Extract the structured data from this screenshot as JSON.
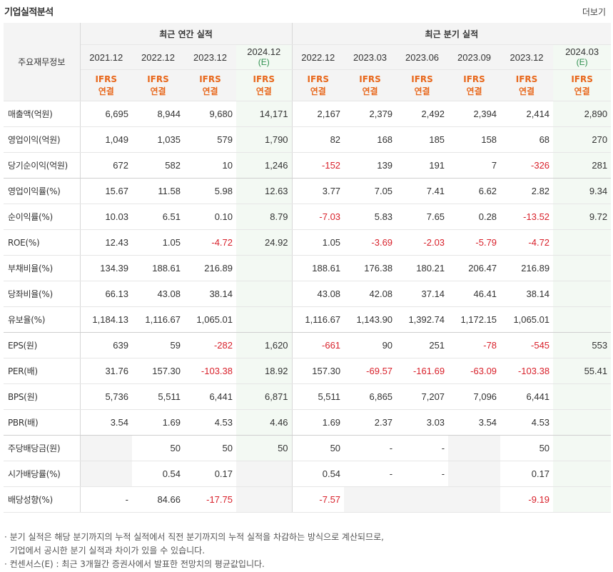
{
  "header": {
    "title": "기업실적분석",
    "more_label": "더보기"
  },
  "table": {
    "corner_label": "주요재무정보",
    "groups": {
      "annual": "최근 연간 실적",
      "quarterly": "최근 분기 실적"
    },
    "periods": [
      {
        "label": "2021.12",
        "est": ""
      },
      {
        "label": "2022.12",
        "est": ""
      },
      {
        "label": "2023.12",
        "est": ""
      },
      {
        "label": "2024.12",
        "est": "(E)"
      },
      {
        "label": "2022.12",
        "est": ""
      },
      {
        "label": "2023.03",
        "est": ""
      },
      {
        "label": "2023.06",
        "est": ""
      },
      {
        "label": "2023.09",
        "est": ""
      },
      {
        "label": "2023.12",
        "est": ""
      },
      {
        "label": "2024.03",
        "est": "(E)"
      }
    ],
    "standard": {
      "line1": "IFRS",
      "line2": "연결"
    },
    "rows": [
      {
        "label": "매출액(억원)",
        "values": [
          "6,695",
          "8,944",
          "9,680",
          "14,171",
          "2,167",
          "2,379",
          "2,492",
          "2,394",
          "2,414",
          "2,890"
        ]
      },
      {
        "label": "영업이익(억원)",
        "values": [
          "1,049",
          "1,035",
          "579",
          "1,790",
          "82",
          "168",
          "185",
          "158",
          "68",
          "270"
        ]
      },
      {
        "label": "당기순이익(억원)",
        "values": [
          "672",
          "582",
          "10",
          "1,246",
          "-152",
          "139",
          "191",
          "7",
          "-326",
          "281"
        ]
      },
      {
        "label": "영업이익률(%)",
        "values": [
          "15.67",
          "11.58",
          "5.98",
          "12.63",
          "3.77",
          "7.05",
          "7.41",
          "6.62",
          "2.82",
          "9.34"
        ]
      },
      {
        "label": "순이익률(%)",
        "values": [
          "10.03",
          "6.51",
          "0.10",
          "8.79",
          "-7.03",
          "5.83",
          "7.65",
          "0.28",
          "-13.52",
          "9.72"
        ]
      },
      {
        "label": "ROE(%)",
        "values": [
          "12.43",
          "1.05",
          "-4.72",
          "24.92",
          "1.05",
          "-3.69",
          "-2.03",
          "-5.79",
          "-4.72",
          ""
        ]
      },
      {
        "label": "부채비율(%)",
        "values": [
          "134.39",
          "188.61",
          "216.89",
          "",
          "188.61",
          "176.38",
          "180.21",
          "206.47",
          "216.89",
          ""
        ]
      },
      {
        "label": "당좌비율(%)",
        "values": [
          "66.13",
          "43.08",
          "38.14",
          "",
          "43.08",
          "42.08",
          "37.14",
          "46.41",
          "38.14",
          ""
        ]
      },
      {
        "label": "유보율(%)",
        "values": [
          "1,184.13",
          "1,116.67",
          "1,065.01",
          "",
          "1,116.67",
          "1,143.90",
          "1,392.74",
          "1,172.15",
          "1,065.01",
          ""
        ]
      },
      {
        "label": "EPS(원)",
        "values": [
          "639",
          "59",
          "-282",
          "1,620",
          "-661",
          "90",
          "251",
          "-78",
          "-545",
          "553"
        ]
      },
      {
        "label": "PER(배)",
        "values": [
          "31.76",
          "157.30",
          "-103.38",
          "18.92",
          "157.30",
          "-69.57",
          "-161.69",
          "-63.09",
          "-103.38",
          "55.41"
        ]
      },
      {
        "label": "BPS(원)",
        "values": [
          "5,736",
          "5,511",
          "6,441",
          "6,871",
          "5,511",
          "6,865",
          "7,207",
          "7,096",
          "6,441",
          ""
        ]
      },
      {
        "label": "PBR(배)",
        "values": [
          "3.54",
          "1.69",
          "4.53",
          "4.46",
          "1.69",
          "2.37",
          "3.03",
          "3.54",
          "4.53",
          ""
        ]
      },
      {
        "label": "주당배당금(원)",
        "values": [
          "",
          "50",
          "50",
          "50",
          "50",
          "-",
          "-",
          "",
          "50",
          ""
        ]
      },
      {
        "label": "시가배당률(%)",
        "values": [
          "",
          "0.54",
          "0.17",
          "",
          "0.54",
          "-",
          "-",
          "",
          "0.17",
          ""
        ]
      },
      {
        "label": "배당성향(%)",
        "values": [
          "-",
          "84.66",
          "-17.75",
          "",
          "-7.57",
          "",
          "",
          "",
          "-9.19",
          ""
        ]
      }
    ]
  },
  "notes": [
    "· 분기 실적은 해당 분기까지의 누적 실적에서 직전 분기까지의 누적 실적을 차감하는 방식으로 계산되므로,",
    "  기업에서 공시한 분기 실적과 차이가 있을 수 있습니다.",
    "· 컨센서스(E) : 최근 3개월간 증권사에서 발표한 전망치의 평균값입니다."
  ],
  "colors": {
    "negative": "#d8202a",
    "ifrs": "#e8671b",
    "estimate_bg": "#f3f9f3",
    "estimate_mark": "#2f8f4f"
  }
}
